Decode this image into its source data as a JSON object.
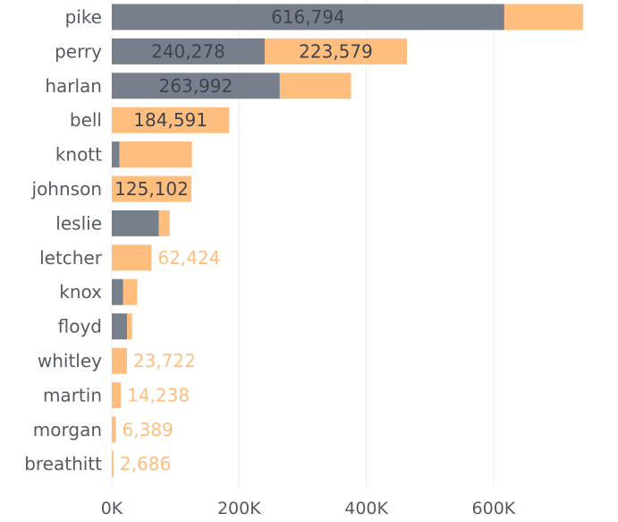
{
  "chart_data": {
    "type": "bar",
    "orientation": "horizontal",
    "stacked": true,
    "categories": [
      "pike",
      "perry",
      "harlan",
      "bell",
      "knott",
      "johnson",
      "leslie",
      "letcher",
      "knox",
      "floyd",
      "whitley",
      "martin",
      "morgan",
      "breathitt"
    ],
    "series": [
      {
        "values": [
          616794,
          240278,
          263992,
          0,
          12000,
          0,
          74000,
          0,
          18000,
          24000,
          0,
          0,
          0,
          0
        ]
      },
      {
        "values": [
          124000,
          223579,
          112000,
          184591,
          114000,
          125102,
          17000,
          62424,
          22000,
          8000,
          23722,
          14238,
          6389,
          2686
        ]
      }
    ],
    "data_labels": [
      {
        "category": "pike",
        "series": 0,
        "text": "616,794",
        "place": "inside"
      },
      {
        "category": "perry",
        "series": 0,
        "text": "240,278",
        "place": "inside"
      },
      {
        "category": "perry",
        "series": 1,
        "text": "223,579",
        "place": "inside"
      },
      {
        "category": "harlan",
        "series": 0,
        "text": "263,992",
        "place": "inside"
      },
      {
        "category": "bell",
        "series": 1,
        "text": "184,591",
        "place": "inside"
      },
      {
        "category": "johnson",
        "series": 1,
        "text": "125,102",
        "place": "inside"
      },
      {
        "category": "letcher",
        "series": 1,
        "text": "62,424",
        "place": "outside"
      },
      {
        "category": "whitley",
        "series": 1,
        "text": "23,722",
        "place": "outside"
      },
      {
        "category": "martin",
        "series": 1,
        "text": "14,238",
        "place": "outside"
      },
      {
        "category": "morgan",
        "series": 1,
        "text": "6,389",
        "place": "outside"
      },
      {
        "category": "breathitt",
        "series": 1,
        "text": "2,686",
        "place": "outside"
      }
    ],
    "x_ticks": [
      0,
      200000,
      400000,
      600000
    ],
    "x_tick_labels": [
      "0K",
      "200K",
      "400K",
      "600K"
    ],
    "xlim": [
      0,
      780000
    ],
    "grid": "vertical",
    "colors": {
      "series_0": "#767f8b",
      "series_1": "#ffbe7d",
      "label_inside": "#3e444c",
      "label_outside": "#ffbe7d",
      "axis_text": "#555b63",
      "grid": "#ececec"
    }
  }
}
